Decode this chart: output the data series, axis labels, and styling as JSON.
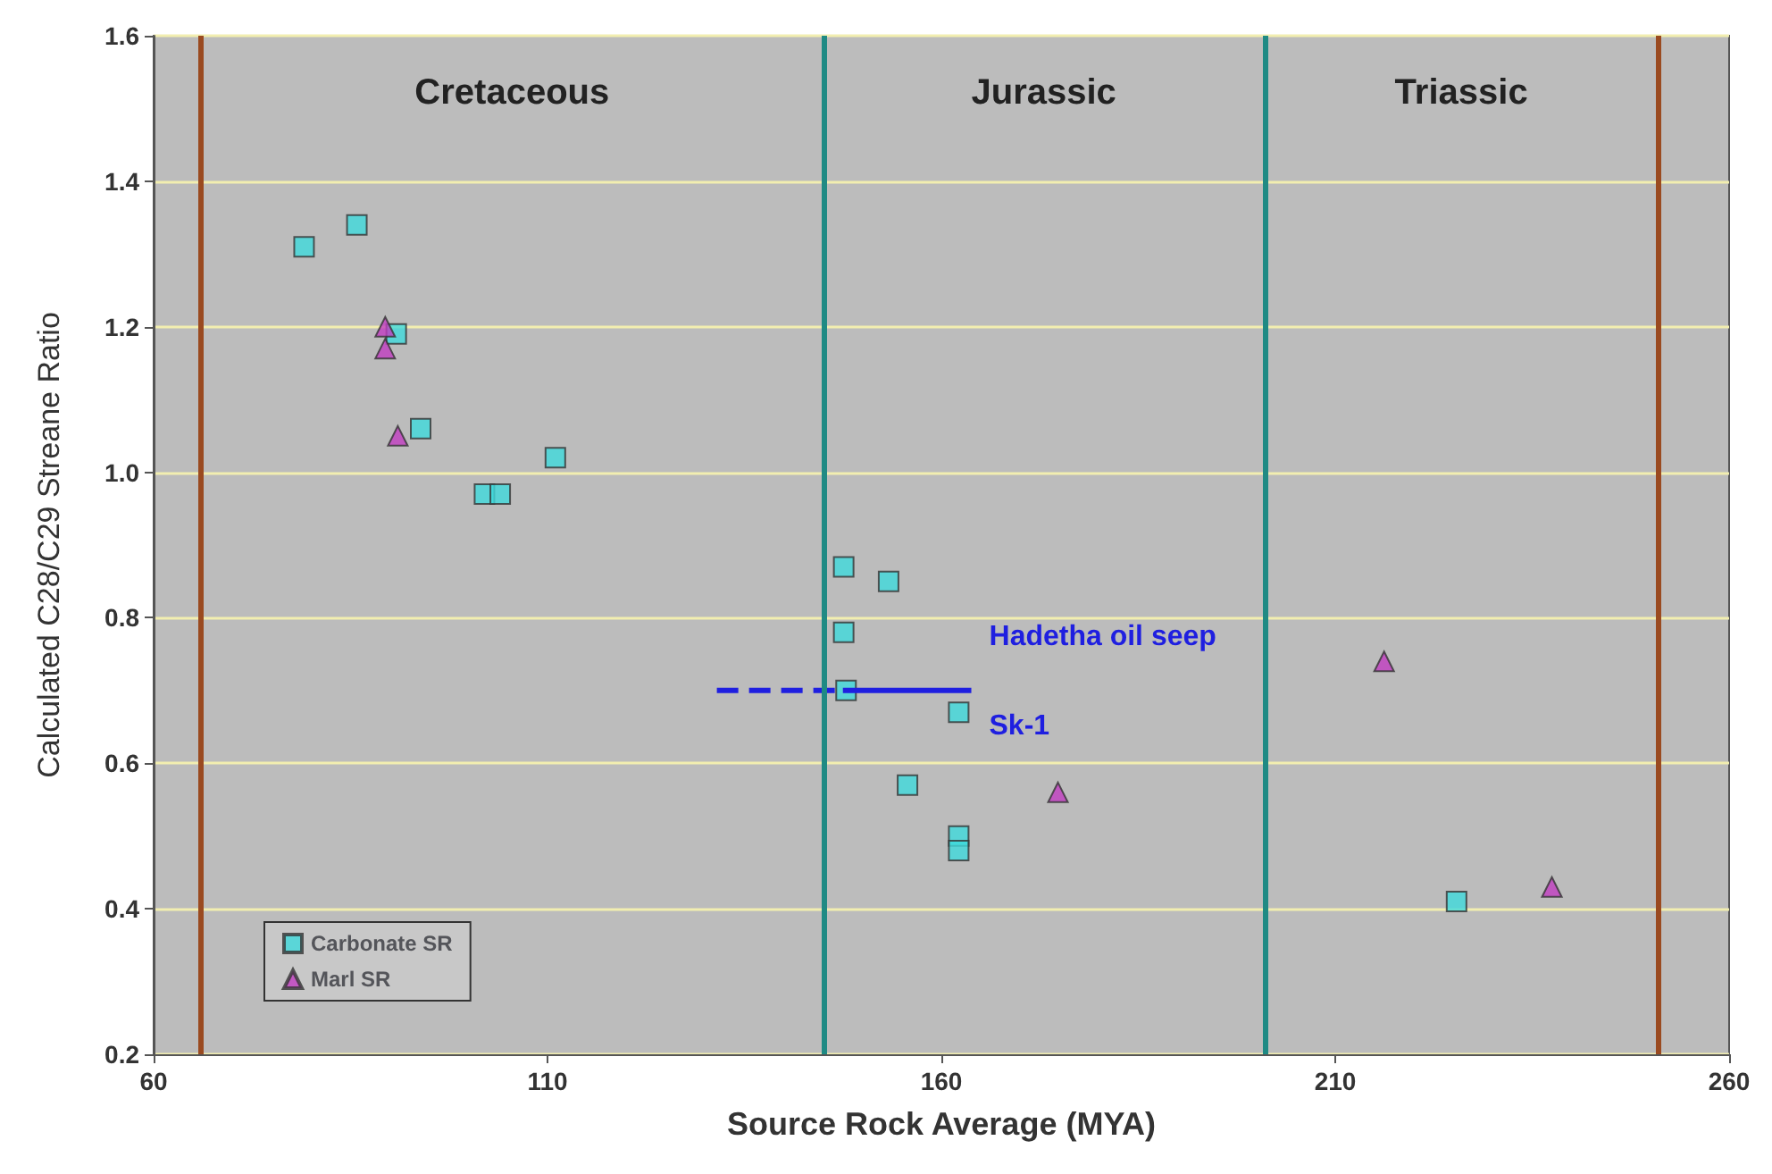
{
  "chart_data": {
    "type": "scatter",
    "xlabel": "Source Rock Average (MYA)",
    "ylabel": "Calculated C28/C29 Streane Ratio",
    "xlim": [
      60,
      260
    ],
    "xticks": [
      60,
      110,
      160,
      210,
      260
    ],
    "ylim": [
      0.2,
      1.6
    ],
    "yticks": [
      0.2,
      0.4,
      0.6,
      0.8,
      {
        "value": 1,
        "label": "1.0"
      },
      1.2,
      1.4,
      1.6
    ],
    "grid": "y",
    "legend": "bottom left",
    "series": [
      {
        "name": "Carbonate SR",
        "color": "#3fd9dc",
        "marker": "square",
        "x": [
          79.1,
          85.8,
          90.8,
          93.9,
          102,
          104,
          111,
          147.6,
          153.3,
          147.6,
          147.9,
          162.2,
          155.7,
          162.2,
          162.2,
          225.4
        ],
        "values": [
          1.31,
          1.34,
          1.19,
          1.06,
          0.97,
          0.97,
          1.02,
          0.87,
          0.85,
          0.78,
          0.7,
          0.67,
          0.57,
          0.5,
          0.48,
          0.41
        ]
      },
      {
        "name": "Marl SR",
        "color": "#c03cc0",
        "marker": "triangle",
        "x": [
          89.4,
          89.4,
          91,
          174.8,
          216.2,
          237.5
        ],
        "values": [
          1.2,
          1.17,
          1.05,
          0.56,
          0.74,
          0.43
        ]
      },
      {
        "type": "line",
        "color": "#1f1fe0",
        "line_style": "dashed",
        "marker": "none",
        "x": [
          131.5,
          147.5
        ],
        "values": [
          0.7,
          0.7
        ]
      },
      {
        "type": "line",
        "color": "#1f1fe0",
        "line_style": "solid",
        "marker": "none",
        "x": [
          147.5,
          163.8
        ],
        "values": [
          0.7,
          0.7
        ]
      }
    ],
    "ref_lines": [
      {
        "axis": "x",
        "value": 66,
        "color": "#9a4a20"
      },
      {
        "axis": "x",
        "value": 145,
        "color": "#1f8a84"
      },
      {
        "axis": "x",
        "value": 201,
        "color": "#1f8a84"
      },
      {
        "axis": "x",
        "value": 251,
        "color": "#9a4a20"
      }
    ],
    "annotations": [
      "Cretaceous",
      "Jurassic",
      "Triassic",
      "Hadetha oil seep",
      "Sk-1"
    ]
  }
}
